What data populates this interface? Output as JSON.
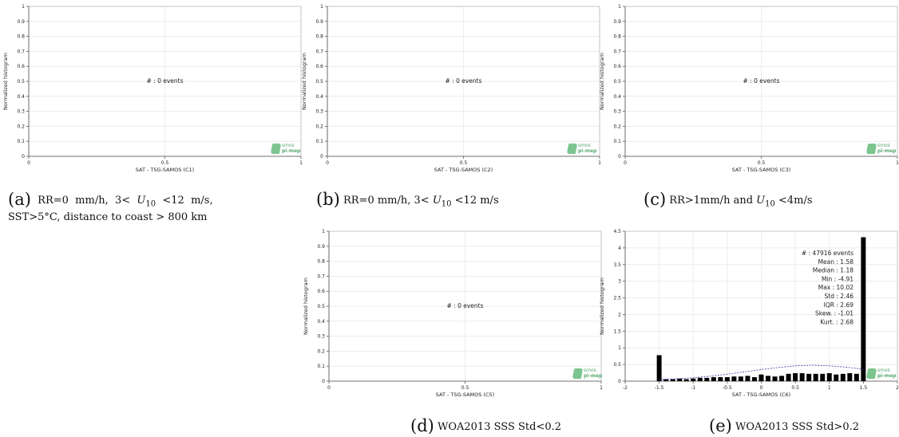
{
  "common": {
    "ylabel": "Normalized histogram",
    "logo_line1": "smos",
    "logo_line2": "pi-mep"
  },
  "chart_data": [
    {
      "id": "a",
      "type": "bar",
      "xlabel": "SAT - TSG-SAMOS (C1)",
      "xlim": [
        0,
        1
      ],
      "ylim": [
        0,
        1
      ],
      "xticks": [
        "0",
        "0.5",
        "1"
      ],
      "yticks": [
        "0",
        "0.1",
        "0.2",
        "0.3",
        "0.4",
        "0.5",
        "0.6",
        "0.7",
        "0.8",
        "0.9",
        "1"
      ],
      "annotation": "#  : 0 events",
      "values": []
    },
    {
      "id": "b",
      "type": "bar",
      "xlabel": "SAT - TSG-SAMOS (C2)",
      "xlim": [
        0,
        1
      ],
      "ylim": [
        0,
        1
      ],
      "xticks": [
        "0",
        "0.5",
        "1"
      ],
      "yticks": [
        "0",
        "0.1",
        "0.2",
        "0.3",
        "0.4",
        "0.5",
        "0.6",
        "0.7",
        "0.8",
        "0.9",
        "1"
      ],
      "annotation": "#  : 0 events",
      "values": []
    },
    {
      "id": "c",
      "type": "bar",
      "xlabel": "SAT - TSG-SAMOS (C3)",
      "xlim": [
        0,
        1
      ],
      "ylim": [
        0,
        1
      ],
      "xticks": [
        "0",
        "0.5",
        "1"
      ],
      "yticks": [
        "0",
        "0.1",
        "0.2",
        "0.3",
        "0.4",
        "0.5",
        "0.6",
        "0.7",
        "0.8",
        "0.9",
        "1"
      ],
      "annotation": "#  : 0 events",
      "values": []
    },
    {
      "id": "d",
      "type": "bar",
      "xlabel": "SAT - TSG-SAMOS (C5)",
      "xlim": [
        0,
        1
      ],
      "ylim": [
        0,
        1
      ],
      "xticks": [
        "0",
        "0.5",
        "1"
      ],
      "yticks": [
        "0",
        "0.1",
        "0.2",
        "0.3",
        "0.4",
        "0.5",
        "0.6",
        "0.7",
        "0.8",
        "0.9",
        "1"
      ],
      "annotation": "#  : 0 events",
      "values": []
    },
    {
      "id": "e",
      "type": "bar",
      "xlabel": "SAT - TSG-SAMOS (C6)",
      "xlim": [
        -2,
        2
      ],
      "ylim": [
        0,
        4.5
      ],
      "xticks": [
        "-2",
        "-1.5",
        "-1",
        "-0.5",
        "0",
        "0.5",
        "1",
        "1.5",
        "2"
      ],
      "yticks": [
        "0",
        "0.5",
        "1",
        "1.5",
        "2",
        "2.5",
        "3",
        "3.5",
        "4",
        "4.5"
      ],
      "stats": [
        "#  : 47916 events",
        "Mean : 1.58",
        "Median : 1.18",
        "Min : -4.91",
        "Max : 10.02",
        "Std : 2.46",
        "IQR : 2.69",
        "Skew. : -1.01",
        "Kurt. : 2.68"
      ],
      "bar_width": 0.07,
      "x": [
        -1.5,
        -1.4,
        -1.3,
        -1.2,
        -1.1,
        -1.0,
        -0.9,
        -0.8,
        -0.7,
        -0.6,
        -0.5,
        -0.4,
        -0.3,
        -0.2,
        -0.1,
        0.0,
        0.1,
        0.2,
        0.3,
        0.4,
        0.5,
        0.6,
        0.7,
        0.8,
        0.9,
        1.0,
        1.1,
        1.2,
        1.3,
        1.4,
        1.5
      ],
      "values": [
        0.78,
        0.06,
        0.06,
        0.08,
        0.06,
        0.08,
        0.1,
        0.1,
        0.12,
        0.12,
        0.12,
        0.14,
        0.14,
        0.16,
        0.12,
        0.2,
        0.16,
        0.14,
        0.16,
        0.22,
        0.24,
        0.24,
        0.22,
        0.22,
        0.22,
        0.24,
        0.2,
        0.22,
        0.24,
        0.22,
        4.32
      ],
      "fit_curve": {
        "style": "dashed",
        "color": "#3a3aa8",
        "x": [
          -1.5,
          -1.25,
          -1.0,
          -0.75,
          -0.5,
          -0.25,
          0.0,
          0.25,
          0.5,
          0.75,
          1.0,
          1.25,
          1.5
        ],
        "y": [
          0.05,
          0.07,
          0.1,
          0.15,
          0.21,
          0.28,
          0.35,
          0.41,
          0.46,
          0.48,
          0.46,
          0.42,
          0.36
        ]
      }
    }
  ],
  "captions": [
    {
      "id": "a",
      "tag": "(a)",
      "text": "RR=0 mm/h, 3< U10 <12 m/s, SST>5°C, distance to coast > 800 km"
    },
    {
      "id": "b",
      "tag": "(b)",
      "text": "RR=0 mm/h, 3< U10 <12 m/s"
    },
    {
      "id": "c",
      "tag": "(c)",
      "text": "RR>1mm/h and U10 <4m/s"
    },
    {
      "id": "d",
      "tag": "(d)",
      "text": "WOA2013 SSS Std<0.2"
    },
    {
      "id": "e",
      "tag": "(e)",
      "text": "WOA2013 SSS Std>0.2"
    }
  ]
}
